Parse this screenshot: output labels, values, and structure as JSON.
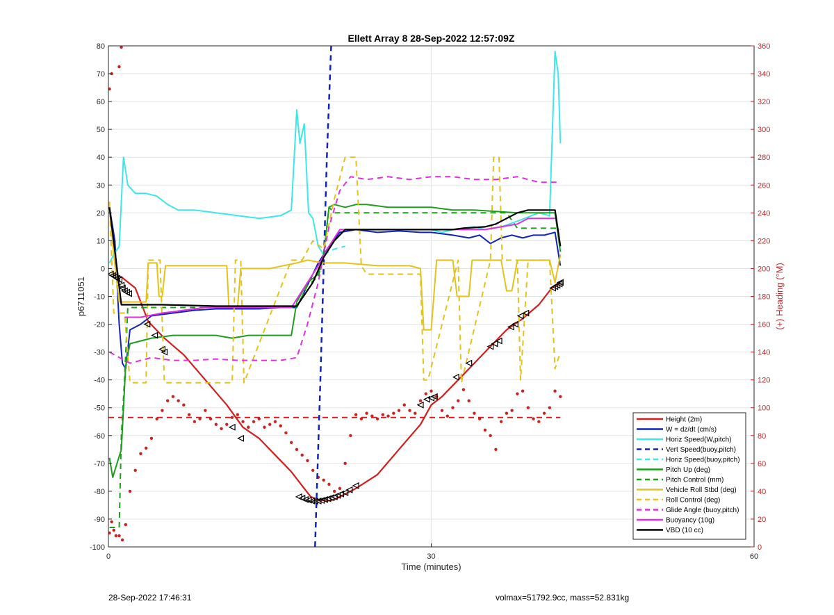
{
  "chart_data": {
    "type": "line",
    "title": "Ellett Array 8 28-Sep-2022 12:57:09Z",
    "xlabel": "Time (minutes)",
    "ylabel": "p6711051",
    "y2label": "(+) Heading (°M)",
    "xlim": [
      0,
      60
    ],
    "ylim": [
      -100,
      80
    ],
    "y2lim": [
      0,
      360
    ],
    "xticks": [
      0,
      30,
      60
    ],
    "yticks": [
      -100,
      -90,
      -80,
      -70,
      -60,
      -50,
      -40,
      -30,
      -20,
      -10,
      0,
      10,
      20,
      30,
      40,
      50,
      60,
      70,
      80
    ],
    "y2ticks": [
      0,
      20,
      40,
      60,
      80,
      100,
      120,
      140,
      160,
      180,
      200,
      220,
      240,
      260,
      280,
      300,
      320,
      340,
      360
    ],
    "grid": true,
    "legend_position": "bottom-right",
    "colors": {
      "red": "#d11f1f",
      "blue": "#1024b8",
      "cyan": "#3ee6e6",
      "green": "#1c9e1c",
      "yellow": "#e4c21c",
      "magenta": "#e02ee0",
      "black": "#000000",
      "marker": "#000000"
    },
    "series": [
      {
        "name": "Height (2m)",
        "color": "red",
        "dash": false,
        "width": 2.2,
        "x": [
          0.3,
          1.2,
          2.5,
          3.7,
          5.2,
          7.0,
          9.0,
          11.0,
          12.5,
          14.0,
          15.5,
          17.0,
          18.0,
          18.8,
          19.5,
          20.3,
          21.0,
          21.5,
          22.0,
          23.0,
          25.0,
          27.0,
          29.0,
          30.0,
          31.0,
          33.0,
          35.0,
          37.0,
          38.5,
          40.0,
          41.2,
          42.0
        ],
        "y": [
          -2,
          -3,
          -7,
          -19,
          -25,
          -31,
          -40,
          -49,
          -57,
          -61,
          -67,
          -73,
          -78,
          -82,
          -83,
          -83.5,
          -83,
          -82,
          -81,
          -79,
          -74,
          -65,
          -56,
          -49,
          -46,
          -38,
          -30,
          -22,
          -18,
          -13,
          -7,
          -5
        ]
      },
      {
        "name": "W = dz/dt (cm/s)",
        "color": "blue",
        "dash": false,
        "width": 2,
        "x": [
          0.1,
          0.6,
          1.0,
          1.3,
          1.6,
          2.0,
          3.0,
          4.0,
          6.0,
          8.0,
          10.0,
          12.0,
          14.0,
          16.0,
          17.5,
          18.5,
          19.5,
          20.5,
          21.5,
          23.0,
          25.0,
          27.0,
          29.0,
          30.0,
          32.0,
          33.5,
          34.5,
          35.5,
          36.5,
          37.5,
          38.5,
          39.5,
          40.5,
          41.5,
          42.0
        ],
        "y": [
          22,
          10,
          -20,
          -34,
          -36,
          -22,
          -20,
          -17,
          -16,
          -15,
          -14.5,
          -14.5,
          -14.5,
          -14,
          -14,
          -6,
          2,
          8,
          13,
          14,
          13,
          13.5,
          13,
          13,
          12,
          11,
          12,
          9,
          11,
          12,
          11,
          12,
          12,
          13,
          1
        ]
      },
      {
        "name": "Horiz Speed(W,pitch)",
        "color": "cyan",
        "dash": false,
        "width": 2,
        "x": [
          0.1,
          0.5,
          1.0,
          1.4,
          1.8,
          2.5,
          3.5,
          4.5,
          5.5,
          6.5,
          8.0,
          10.0,
          12.0,
          14.0,
          16.0,
          17.0,
          17.5,
          17.8,
          18.2,
          18.6,
          19.0,
          19.5,
          20.0,
          21.0,
          22.0,
          24.0,
          26.0,
          28.0,
          30.0,
          31.0,
          32.0,
          34.0,
          35.0,
          36.5,
          38.0,
          40.0,
          41.0,
          41.5,
          41.8,
          42.0
        ],
        "y": [
          2,
          5,
          8,
          40,
          30,
          27,
          27,
          26,
          23,
          21,
          21,
          20,
          19,
          18,
          19,
          21,
          57,
          45,
          52,
          20,
          18,
          8,
          5,
          10,
          14,
          14,
          14,
          14,
          14,
          13,
          14,
          15,
          14,
          15,
          17,
          20,
          19,
          78,
          70,
          45
        ]
      },
      {
        "name": "Vert Speed(buoy,pitch)",
        "color": "blue",
        "dash": true,
        "width": 2.5,
        "x": [
          19.2,
          19.7,
          20.3,
          20.7
        ],
        "y": [
          -100,
          -40,
          40,
          80
        ]
      },
      {
        "name": "Horiz Speed(buoy,pitch)",
        "color": "cyan",
        "dash": true,
        "width": 2,
        "x": [
          20.0,
          21.0,
          22.0
        ],
        "y": [
          5,
          7,
          8
        ]
      },
      {
        "name": "Pitch Up (deg)",
        "color": "green",
        "dash": false,
        "width": 2,
        "x": [
          0.1,
          0.4,
          0.8,
          1.2,
          1.6,
          2.0,
          3.0,
          4.0,
          6.0,
          8.0,
          10.0,
          11.5,
          13.0,
          15.0,
          17.0,
          17.5,
          18.5,
          19.5,
          20.0,
          20.5,
          21.0,
          22.0,
          23.0,
          24.0,
          26.0,
          28.0,
          30.0,
          32.0,
          34.0,
          36.0,
          38.0,
          40.0,
          41.0,
          41.5,
          42.0
        ],
        "y": [
          -68,
          -75,
          -70,
          -65,
          -35,
          -27,
          -26,
          -25,
          -24,
          -24,
          -24,
          -25,
          -24,
          -24,
          -24,
          -12,
          -5,
          -2,
          5,
          22,
          23,
          22,
          23,
          23,
          22,
          22,
          22,
          21,
          21,
          20.5,
          20,
          20,
          20,
          20,
          6
        ]
      },
      {
        "name": "Pitch Control (mm)",
        "color": "green",
        "dash": true,
        "width": 2,
        "x": [
          0.1,
          1.0,
          1.2,
          1.5,
          1.8,
          2.5,
          17.5,
          18.5,
          19.5,
          20.0,
          20.5,
          21.0,
          22.5,
          30.0,
          37.0,
          38.0,
          41.5,
          42.0
        ],
        "y": [
          -93,
          -93,
          -60,
          -40,
          -14,
          -14,
          -14,
          -6,
          -3,
          5,
          22,
          20,
          20,
          20,
          20,
          14.5,
          14.5,
          14
        ]
      },
      {
        "name": "Vehicle Roll Stbd (deg)",
        "color": "yellow",
        "dash": false,
        "width": 2,
        "x": [
          0.1,
          0.5,
          1.0,
          1.5,
          3.5,
          3.7,
          4.5,
          4.7,
          5.0,
          5.3,
          11.0,
          11.2,
          12.0,
          12.3,
          15.0,
          17.5,
          18.5,
          20.0,
          22.0,
          25.0,
          28.0,
          29.0,
          29.3,
          30.0,
          30.5,
          32.0,
          32.4,
          33.5,
          33.8,
          36.5,
          37.0,
          37.5,
          38.0,
          39.5,
          41.0,
          41.5,
          42.0
        ],
        "y": [
          22,
          5,
          -12,
          -12,
          -12,
          2,
          2,
          -10,
          -10,
          1,
          1,
          -14,
          -14,
          0,
          0,
          2,
          3,
          2,
          2,
          1,
          1,
          0,
          -22,
          -22,
          3,
          3,
          -10,
          -10,
          3,
          3,
          -8,
          -8,
          3,
          3,
          3,
          -5,
          5
        ]
      },
      {
        "name": "Roll Control (deg)",
        "color": "yellow",
        "dash": true,
        "width": 2,
        "x": [
          0.1,
          0.5,
          1.5,
          2.0,
          3.5,
          3.7,
          4.8,
          5.2,
          11.5,
          11.8,
          12.3,
          12.6,
          17.0,
          18.0,
          19.0,
          20.0,
          21.0,
          22.0,
          23.0,
          23.5,
          24.0,
          29.0,
          29.3,
          29.7,
          32.5,
          32.8,
          35.5,
          35.8,
          36.3,
          36.6,
          38.0,
          38.3,
          39.0,
          40.0,
          41.0,
          41.5,
          42.0
        ],
        "y": [
          24,
          -16,
          -16,
          -41,
          -41,
          3,
          3,
          -41,
          -41,
          3,
          3,
          -41,
          3,
          3,
          10,
          7,
          25,
          40,
          40,
          1,
          -2,
          -2,
          -40,
          -40,
          3,
          -41,
          3,
          40,
          40,
          3,
          3,
          -40,
          3,
          3,
          3,
          -36,
          -30
        ]
      },
      {
        "name": "Glide Angle (buoy,pitch)",
        "color": "magenta",
        "dash": true,
        "width": 2,
        "x": [
          0.1,
          1.5,
          2.0,
          4.0,
          6.0,
          8.0,
          10.0,
          12.0,
          14.0,
          16.0,
          17.5,
          18.5,
          19.5,
          20.5,
          21.5,
          22.5,
          24.0,
          26.0,
          28.0,
          30.0,
          32.0,
          34.0,
          36.0,
          38.0,
          40.0,
          42.0
        ],
        "y": [
          -30,
          -33,
          -34,
          -32,
          -33,
          -33,
          -32.5,
          -33,
          -33,
          -33,
          -32,
          -20,
          -5,
          15,
          28,
          33,
          32,
          33,
          32,
          33,
          33,
          32,
          32,
          33,
          31,
          31
        ]
      },
      {
        "name": "Buoyancy (10g)",
        "color": "magenta",
        "dash": false,
        "width": 2,
        "x": [
          1.5,
          3.0,
          5.0,
          7.0,
          9.0,
          11.0,
          13.0,
          15.0,
          17.0,
          18.5,
          19.5,
          20.5,
          21.5,
          24.0,
          28.0,
          31.0,
          33.0,
          35.0,
          36.5,
          38.0,
          39.0,
          40.0,
          41.5
        ],
        "y": [
          -17.5,
          -17.5,
          -16,
          -15,
          -14,
          -14,
          -14,
          -14,
          -14,
          -5,
          1,
          8,
          14,
          14,
          14,
          14,
          14,
          14,
          15,
          16,
          18,
          18,
          18
        ]
      },
      {
        "name": "VBD (10 cc)",
        "color": "black",
        "dash": false,
        "width": 2.2,
        "x": [
          0.1,
          0.8,
          1.2,
          2.0,
          5.0,
          10.0,
          15.0,
          17.5,
          19.0,
          20.0,
          21.0,
          22.0,
          22.5,
          28.0,
          30.0,
          32.0,
          33.0,
          35.0,
          36.0,
          37.0,
          38.0,
          39.0,
          40.0,
          41.5,
          42.0
        ],
        "y": [
          22,
          0,
          -13,
          -13,
          -13,
          -13.5,
          -13.5,
          -13.5,
          -5,
          4,
          10,
          14,
          14,
          14,
          14,
          14,
          14.5,
          15,
          16,
          18,
          20,
          21,
          21,
          21,
          8
        ]
      }
    ],
    "heading": {
      "name": "Heading",
      "color": "red",
      "reference_line": 93,
      "x": [
        0.1,
        0.3,
        1.0,
        1.2,
        0.1,
        0.3,
        0.5,
        0.7,
        1.0,
        1.3,
        1.6,
        2.0,
        2.5,
        3.0,
        3.5,
        4.0,
        4.5,
        5.0,
        5.5,
        6.0,
        6.5,
        7.0,
        7.5,
        8.0,
        8.5,
        9.0,
        9.5,
        10.0,
        10.5,
        11.0,
        11.5,
        12.0,
        12.5,
        13.0,
        13.5,
        14.0,
        14.5,
        15.0,
        15.5,
        16.0,
        16.5,
        17.0,
        17.5,
        18.0,
        18.5,
        19.0,
        19.5,
        20.0,
        20.5,
        21.0,
        21.5,
        22.0,
        22.5,
        23.0,
        23.5,
        24.0,
        24.5,
        25.0,
        25.5,
        26.0,
        26.5,
        27.0,
        27.5,
        28.0,
        28.5,
        29.0,
        29.5,
        30.0,
        30.5,
        31.0,
        31.5,
        32.0,
        32.5,
        33.0,
        33.5,
        34.0,
        34.5,
        35.0,
        35.5,
        36.0,
        36.5,
        37.0,
        37.5,
        38.0,
        38.5,
        39.0,
        39.5,
        40.0,
        40.5,
        41.0,
        41.5,
        42.0
      ],
      "y": [
        329,
        340,
        345,
        359,
        10,
        18,
        12,
        8,
        8,
        5,
        16,
        40,
        55,
        67,
        71,
        78,
        92,
        98,
        105,
        108,
        105,
        102,
        95,
        90,
        92,
        98,
        92,
        88,
        85,
        88,
        93,
        95,
        90,
        86,
        90,
        92,
        86,
        88,
        90,
        87,
        82,
        75,
        70,
        66,
        62,
        55,
        50,
        48,
        45,
        40,
        42,
        60,
        80,
        95,
        92,
        96,
        94,
        92,
        95,
        94,
        96,
        98,
        102,
        98,
        96,
        105,
        110,
        112,
        108,
        98,
        94,
        100,
        105,
        113,
        105,
        96,
        92,
        84,
        80,
        70,
        90,
        96,
        98,
        110,
        112,
        100,
        92,
        90,
        96,
        100,
        112,
        108
      ]
    },
    "markers": {
      "symbol": "triangle",
      "x": [
        0.2,
        0.4,
        0.6,
        0.8,
        1.0,
        1.2,
        1.3,
        1.5,
        1.7,
        1.9,
        3.6,
        4.3,
        5.0,
        5.2,
        11.5,
        12.3,
        17.7,
        18.0,
        18.3,
        18.6,
        18.9,
        19.2,
        19.5,
        19.8,
        20.1,
        20.4,
        20.7,
        21.0,
        21.3,
        21.6,
        22.0,
        22.4,
        23.0,
        29.0,
        29.6,
        30.0,
        30.3,
        32.3,
        33.5,
        35.5,
        35.9,
        36.3,
        37.4,
        37.8,
        38.3,
        38.8,
        41.3,
        41.5,
        41.7,
        41.9,
        42.0
      ],
      "y": [
        -2,
        -2.5,
        -3,
        -3.5,
        -4,
        -6,
        -7,
        -8,
        -8.5,
        -9,
        -20,
        -24,
        -29,
        -30,
        -57,
        -61,
        -82,
        -82.5,
        -83,
        -83.2,
        -83.5,
        -83.6,
        -83.5,
        -83.3,
        -83,
        -82.7,
        -82.3,
        -82,
        -81.5,
        -81,
        -80.5,
        -79.5,
        -78,
        -49,
        -47,
        -46.5,
        -46,
        -39,
        -34,
        -28,
        -27,
        -26,
        -21,
        -20,
        -17,
        -16,
        -7,
        -6.5,
        -6,
        -5.5,
        -5
      ]
    }
  },
  "footer": {
    "timestamp": "28-Sep-2022 17:46:31",
    "stats": "volmax=51792.9cc, mass=52.831kg"
  }
}
